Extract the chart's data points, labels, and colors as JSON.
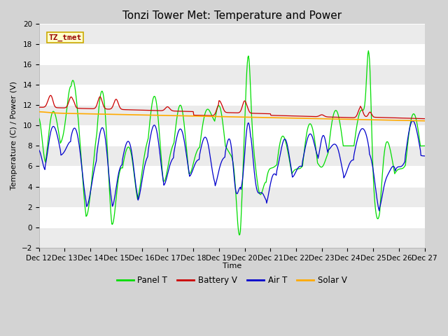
{
  "title": "Tonzi Tower Met: Temperature and Power",
  "ylabel": "Temperature (C) / Power (V)",
  "xlabel": "Time",
  "watermark": "TZ_tmet",
  "ylim": [
    -2,
    20
  ],
  "xlim": [
    0,
    360
  ],
  "x_tick_labels": [
    "Dec 12",
    "Dec 13",
    "Dec 14",
    "Dec 15",
    "Dec 16",
    "Dec 17",
    "Dec 18",
    "Dec 19",
    "Dec 20",
    "Dec 21",
    "Dec 22",
    "Dec 23",
    "Dec 24",
    "Dec 25",
    "Dec 26",
    "Dec 27"
  ],
  "x_ticks": [
    0,
    24,
    48,
    72,
    96,
    120,
    144,
    168,
    192,
    216,
    240,
    264,
    288,
    312,
    336,
    360
  ],
  "fig_bg": "#d3d3d3",
  "plot_bg": "#ffffff",
  "grid_color": "#e0e0e0",
  "legend_labels": [
    "Panel T",
    "Battery V",
    "Air T",
    "Solar V"
  ],
  "legend_colors": [
    "#00ee00",
    "#dd0000",
    "#0000dd",
    "#ffaa00"
  ],
  "title_fontsize": 11,
  "label_fontsize": 8,
  "tick_fontsize": 7.5,
  "watermark_color": "#990000",
  "watermark_bg": "#ffffcc",
  "watermark_edge": "#ccaa00"
}
